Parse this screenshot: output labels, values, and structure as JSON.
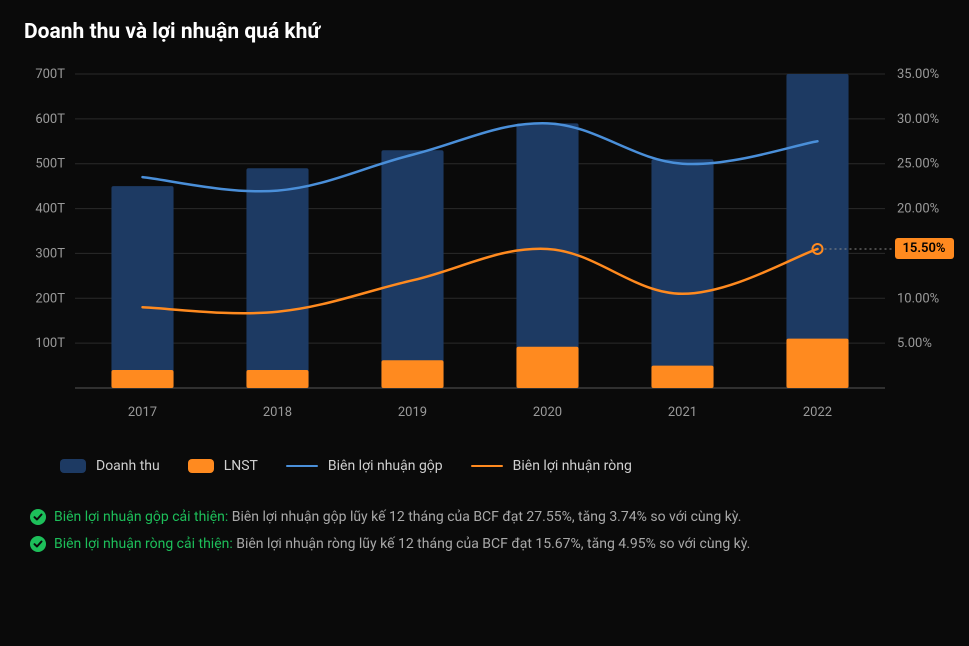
{
  "title": "Doanh thu và lợi nhuận quá khứ",
  "chart": {
    "type": "combo-bar-line",
    "background_color": "#0a0a0a",
    "plot_background": "#0a0a0a",
    "grid_color": "#2a2a2a",
    "axis_text_color": "#9a9a9a",
    "axis_fontsize": 13,
    "x_categories": [
      "2017",
      "2018",
      "2019",
      "2020",
      "2021",
      "2022"
    ],
    "y_left": {
      "min": 0,
      "max": 700,
      "tick_step": 100,
      "suffix": "T",
      "ticks": [
        "100T",
        "200T",
        "300T",
        "400T",
        "500T",
        "600T",
        "700T"
      ]
    },
    "y_right": {
      "min": 0,
      "max": 35,
      "tick_step": 5,
      "suffix": "%",
      "ticks": [
        "5.00%",
        "10.00%",
        "15.00%",
        "20.00%",
        "25.00%",
        "30.00%",
        "35.00%"
      ]
    },
    "bar_width_ratio": 0.46,
    "series": {
      "doanh_thu": {
        "type": "bar",
        "label": "Doanh thu",
        "color": "#1d3a63",
        "stack": "a",
        "values": [
          450,
          490,
          530,
          590,
          510,
          700
        ]
      },
      "lnst": {
        "type": "bar",
        "label": "LNST",
        "color": "#ff8a1f",
        "stack": "a",
        "values": [
          40,
          40,
          62,
          92,
          50,
          110
        ]
      },
      "bien_gop": {
        "type": "line",
        "label": "Biên lợi nhuận gộp",
        "color": "#4a8fd9",
        "line_width": 2.5,
        "values": [
          23.5,
          22.0,
          26.0,
          29.5,
          25.0,
          27.5
        ]
      },
      "bien_rong": {
        "type": "line",
        "label": "Biên lợi nhuận ròng",
        "color": "#ff8a1f",
        "line_width": 2.5,
        "values": [
          9.0,
          8.5,
          12.0,
          15.5,
          10.5,
          15.5
        ],
        "end_marker": {
          "radius": 5,
          "stroke": "#ff8a1f",
          "fill": "none",
          "stroke_width": 2
        }
      }
    },
    "annotation": {
      "text": "15.50%",
      "series": "bien_rong",
      "index": 5,
      "badge_bg": "#ff8a1f",
      "badge_color": "#000000",
      "dash_color": "#8a8a8a"
    },
    "legend": [
      {
        "key": "doanh_thu",
        "type": "bar",
        "color": "#1d3a63",
        "label": "Doanh thu"
      },
      {
        "key": "lnst",
        "type": "bar",
        "color": "#ff8a1f",
        "label": "LNST"
      },
      {
        "key": "bien_gop",
        "type": "line",
        "color": "#4a8fd9",
        "label": "Biên lợi nhuận gộp"
      },
      {
        "key": "bien_rong",
        "type": "line",
        "color": "#ff8a1f",
        "label": "Biên lợi nhuận ròng"
      }
    ]
  },
  "notes": [
    {
      "highlight": "Biên lợi nhuận gộp cải thiện:",
      "rest": " Biên lợi nhuận gộp lũy kế 12 tháng của BCF đạt 27.55%, tăng 3.74% so với cùng kỳ."
    },
    {
      "highlight": "Biên lợi nhuận ròng cải thiện:",
      "rest": " Biên lợi nhuận ròng lũy kế 12 tháng của BCF đạt 15.67%, tăng 4.95% so với cùng kỳ."
    }
  ],
  "colors": {
    "check_ok": "#1dbf5a",
    "text_muted": "#a9a9a9"
  }
}
